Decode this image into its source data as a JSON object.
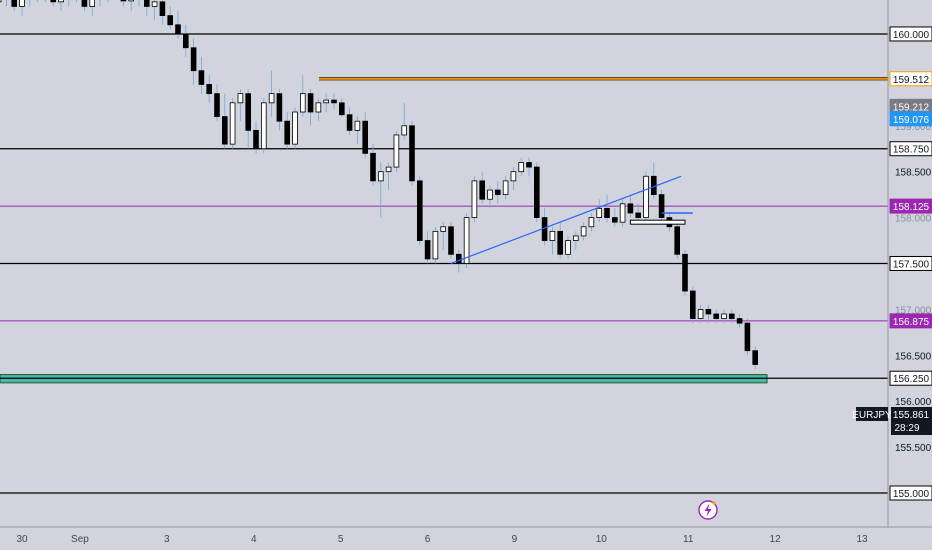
{
  "chart_data": {
    "type": "candlestick",
    "symbol": "EURJPY",
    "last_price": "155.861",
    "countdown": "28:29",
    "y_range": [
      155.0,
      160.37
    ],
    "y_ticks": [
      "155.500",
      "156.000",
      "156.500",
      "157.000",
      "157.500",
      "158.000",
      "158.500",
      "159.000"
    ],
    "x_ticks": [
      {
        "label": "30",
        "idx": 2
      },
      {
        "label": "Sep",
        "idx": 8
      },
      {
        "label": "3",
        "idx": 17
      },
      {
        "label": "4",
        "idx": 26
      },
      {
        "label": "5",
        "idx": 35
      },
      {
        "label": "6",
        "idx": 44
      },
      {
        "label": "9",
        "idx": 53
      },
      {
        "label": "10",
        "idx": 62
      },
      {
        "label": "11",
        "idx": 71
      },
      {
        "label": "12",
        "idx": 80
      },
      {
        "label": "13",
        "idx": 89
      }
    ],
    "levels": [
      {
        "price": 160.0,
        "label": "160.000",
        "color": "#000000",
        "kind": "black"
      },
      {
        "price": 159.512,
        "label": "159.512",
        "color": "#ff9800",
        "kind": "orange"
      },
      {
        "price": 159.212,
        "label": "159.212",
        "color": "#787b86",
        "kind": "gray"
      },
      {
        "price": 159.076,
        "label": "159.076",
        "color": "#2196f3",
        "kind": "blue"
      },
      {
        "price": 158.75,
        "label": "158.750",
        "color": "#000000",
        "kind": "black"
      },
      {
        "price": 158.125,
        "label": "158.125",
        "color": "#9c27b0",
        "kind": "purple"
      },
      {
        "price": 157.5,
        "label": "157.500",
        "color": "#000000",
        "kind": "black"
      },
      {
        "price": 156.875,
        "label": "156.875",
        "color": "#9c27b0",
        "kind": "purple"
      },
      {
        "price": 156.25,
        "label": "156.250",
        "color": "#000000",
        "kind": "black"
      },
      {
        "price": 155.0,
        "label": "155.000",
        "color": "#000000",
        "kind": "black"
      }
    ],
    "zone": {
      "from": 156.2,
      "to": 156.29,
      "color": "#4db6ac"
    },
    "candles": [
      [
        160.5,
        160.6,
        160.3,
        160.4
      ],
      [
        160.4,
        160.55,
        160.3,
        160.45
      ],
      [
        160.45,
        160.6,
        160.35,
        160.5
      ],
      [
        160.5,
        160.6,
        160.38,
        160.45
      ],
      [
        160.45,
        160.55,
        160.3,
        160.4
      ],
      [
        160.4,
        160.5,
        160.25,
        160.3
      ],
      [
        160.3,
        160.45,
        160.2,
        160.35
      ],
      [
        160.35,
        160.5,
        160.25,
        160.42
      ],
      [
        160.42,
        160.55,
        160.3,
        160.38
      ],
      [
        160.38,
        160.5,
        160.25,
        160.3
      ],
      [
        160.3,
        160.45,
        160.2,
        160.4
      ],
      [
        160.4,
        160.55,
        160.3,
        160.45
      ],
      [
        160.45,
        160.6,
        160.35,
        160.5
      ],
      [
        160.5,
        160.6,
        160.35,
        160.42
      ],
      [
        160.42,
        160.55,
        160.3,
        160.35
      ],
      [
        160.35,
        160.5,
        160.25,
        160.4
      ],
      [
        160.4,
        160.55,
        160.3,
        160.48
      ],
      [
        160.48,
        160.6,
        160.35,
        160.4
      ],
      [
        160.4,
        160.5,
        160.25,
        160.3
      ],
      [
        160.3,
        160.45,
        160.2,
        160.38
      ],
      [
        160.38,
        160.5,
        160.3,
        160.45
      ],
      [
        160.45,
        160.6,
        160.35,
        160.5
      ],
      [
        160.5,
        160.6,
        160.38,
        160.42
      ],
      [
        160.42,
        160.55,
        160.3,
        160.36
      ],
      [
        160.36,
        160.5,
        160.25,
        160.4
      ],
      [
        160.4,
        160.5,
        160.3,
        160.45
      ],
      [
        160.45,
        160.55,
        160.2,
        160.3
      ],
      [
        160.3,
        160.45,
        160.15,
        160.35
      ],
      [
        160.35,
        160.45,
        160.1,
        160.2
      ],
      [
        160.2,
        160.3,
        160.05,
        160.1
      ],
      [
        160.1,
        160.25,
        159.95,
        160.0
      ],
      [
        160.0,
        160.1,
        159.75,
        159.85
      ],
      [
        159.85,
        159.95,
        159.45,
        159.6
      ],
      [
        159.6,
        159.75,
        159.35,
        159.45
      ],
      [
        159.45,
        159.55,
        159.25,
        159.35
      ],
      [
        159.35,
        159.45,
        159.05,
        159.1
      ],
      [
        159.1,
        159.35,
        158.75,
        158.8
      ],
      [
        158.8,
        159.3,
        158.75,
        159.25
      ],
      [
        159.25,
        159.4,
        159.05,
        159.35
      ],
      [
        159.35,
        159.4,
        158.75,
        158.95
      ],
      [
        158.95,
        159.05,
        158.7,
        158.75
      ],
      [
        158.75,
        159.3,
        158.7,
        159.25
      ],
      [
        159.25,
        159.6,
        159.1,
        159.35
      ],
      [
        159.35,
        159.4,
        158.95,
        159.05
      ],
      [
        159.05,
        159.15,
        158.75,
        158.8
      ],
      [
        158.8,
        159.2,
        158.75,
        159.15
      ],
      [
        159.15,
        159.55,
        159.1,
        159.35
      ],
      [
        159.35,
        159.4,
        159.0,
        159.15
      ],
      [
        159.15,
        159.3,
        159.05,
        159.25
      ],
      [
        159.25,
        159.35,
        159.15,
        159.28
      ],
      [
        159.28,
        159.35,
        159.18,
        159.25
      ],
      [
        159.25,
        159.3,
        159.1,
        159.12
      ],
      [
        159.12,
        159.2,
        158.9,
        158.95
      ],
      [
        158.95,
        159.1,
        158.8,
        159.05
      ],
      [
        159.05,
        159.15,
        158.65,
        158.7
      ],
      [
        158.7,
        158.8,
        158.35,
        158.4
      ],
      [
        158.4,
        158.6,
        158.0,
        158.5
      ],
      [
        158.5,
        158.6,
        158.3,
        158.55
      ],
      [
        158.55,
        158.95,
        158.5,
        158.9
      ],
      [
        158.9,
        159.25,
        158.85,
        159.0
      ],
      [
        159.0,
        159.05,
        158.35,
        158.4
      ],
      [
        158.4,
        158.45,
        157.7,
        157.75
      ],
      [
        157.75,
        157.85,
        157.5,
        157.55
      ],
      [
        157.55,
        157.9,
        157.5,
        157.85
      ],
      [
        157.85,
        157.95,
        157.65,
        157.9
      ],
      [
        157.9,
        157.95,
        157.55,
        157.6
      ],
      [
        157.6,
        157.65,
        157.4,
        157.5
      ],
      [
        157.5,
        158.05,
        157.45,
        158.0
      ],
      [
        158.0,
        158.45,
        157.95,
        158.4
      ],
      [
        158.4,
        158.5,
        158.15,
        158.2
      ],
      [
        158.2,
        158.35,
        158.1,
        158.3
      ],
      [
        158.3,
        158.4,
        158.15,
        158.25
      ],
      [
        158.25,
        158.45,
        158.2,
        158.4
      ],
      [
        158.4,
        158.55,
        158.3,
        158.5
      ],
      [
        158.5,
        158.65,
        158.45,
        158.6
      ],
      [
        158.6,
        158.65,
        158.45,
        158.55
      ],
      [
        158.55,
        158.6,
        157.95,
        158.0
      ],
      [
        158.0,
        158.1,
        157.7,
        157.75
      ],
      [
        157.75,
        157.9,
        157.6,
        157.85
      ],
      [
        157.85,
        157.95,
        157.55,
        157.6
      ],
      [
        157.6,
        157.8,
        157.55,
        157.75
      ],
      [
        157.75,
        157.85,
        157.65,
        157.8
      ],
      [
        157.8,
        157.95,
        157.75,
        157.9
      ],
      [
        157.9,
        158.05,
        157.85,
        158.0
      ],
      [
        158.0,
        158.2,
        157.95,
        158.1
      ],
      [
        158.1,
        158.25,
        157.95,
        158.0
      ],
      [
        158.0,
        158.1,
        157.9,
        157.95
      ],
      [
        157.95,
        158.2,
        157.9,
        158.15
      ],
      [
        158.15,
        158.25,
        158.0,
        158.05
      ],
      [
        158.05,
        158.15,
        157.95,
        158.0
      ],
      [
        158.0,
        158.5,
        157.95,
        158.45
      ],
      [
        158.45,
        158.6,
        158.2,
        158.25
      ],
      [
        158.25,
        158.3,
        157.95,
        158.0
      ],
      [
        158.0,
        158.05,
        157.85,
        157.9
      ],
      [
        157.9,
        157.95,
        157.55,
        157.6
      ],
      [
        157.6,
        157.65,
        157.15,
        157.2
      ],
      [
        157.2,
        157.25,
        156.85,
        156.9
      ],
      [
        156.9,
        157.05,
        156.85,
        157.0
      ],
      [
        157.0,
        157.05,
        156.85,
        156.95
      ],
      [
        156.95,
        157.0,
        156.85,
        156.9
      ],
      [
        156.9,
        157.0,
        156.85,
        156.95
      ],
      [
        156.95,
        157.0,
        156.85,
        156.9
      ],
      [
        156.9,
        156.95,
        156.8,
        156.85
      ],
      [
        156.85,
        156.9,
        156.5,
        156.55
      ],
      [
        156.55,
        156.6,
        156.35,
        156.4
      ],
      [
        156.4,
        156.6,
        156.3,
        156.5
      ],
      [
        156.5,
        156.55,
        156.05,
        156.1
      ],
      [
        156.1,
        156.15,
        155.7,
        155.86
      ]
    ],
    "trendline": {
      "from": [
        65,
        157.5
      ],
      "to": [
        94.5,
        158.45
      ]
    },
    "mini_boxes": [
      {
        "x1": 88,
        "x2": 95,
        "price": 157.95
      },
      {
        "x1": 92,
        "x2": 96,
        "price": 158.05
      }
    ]
  }
}
